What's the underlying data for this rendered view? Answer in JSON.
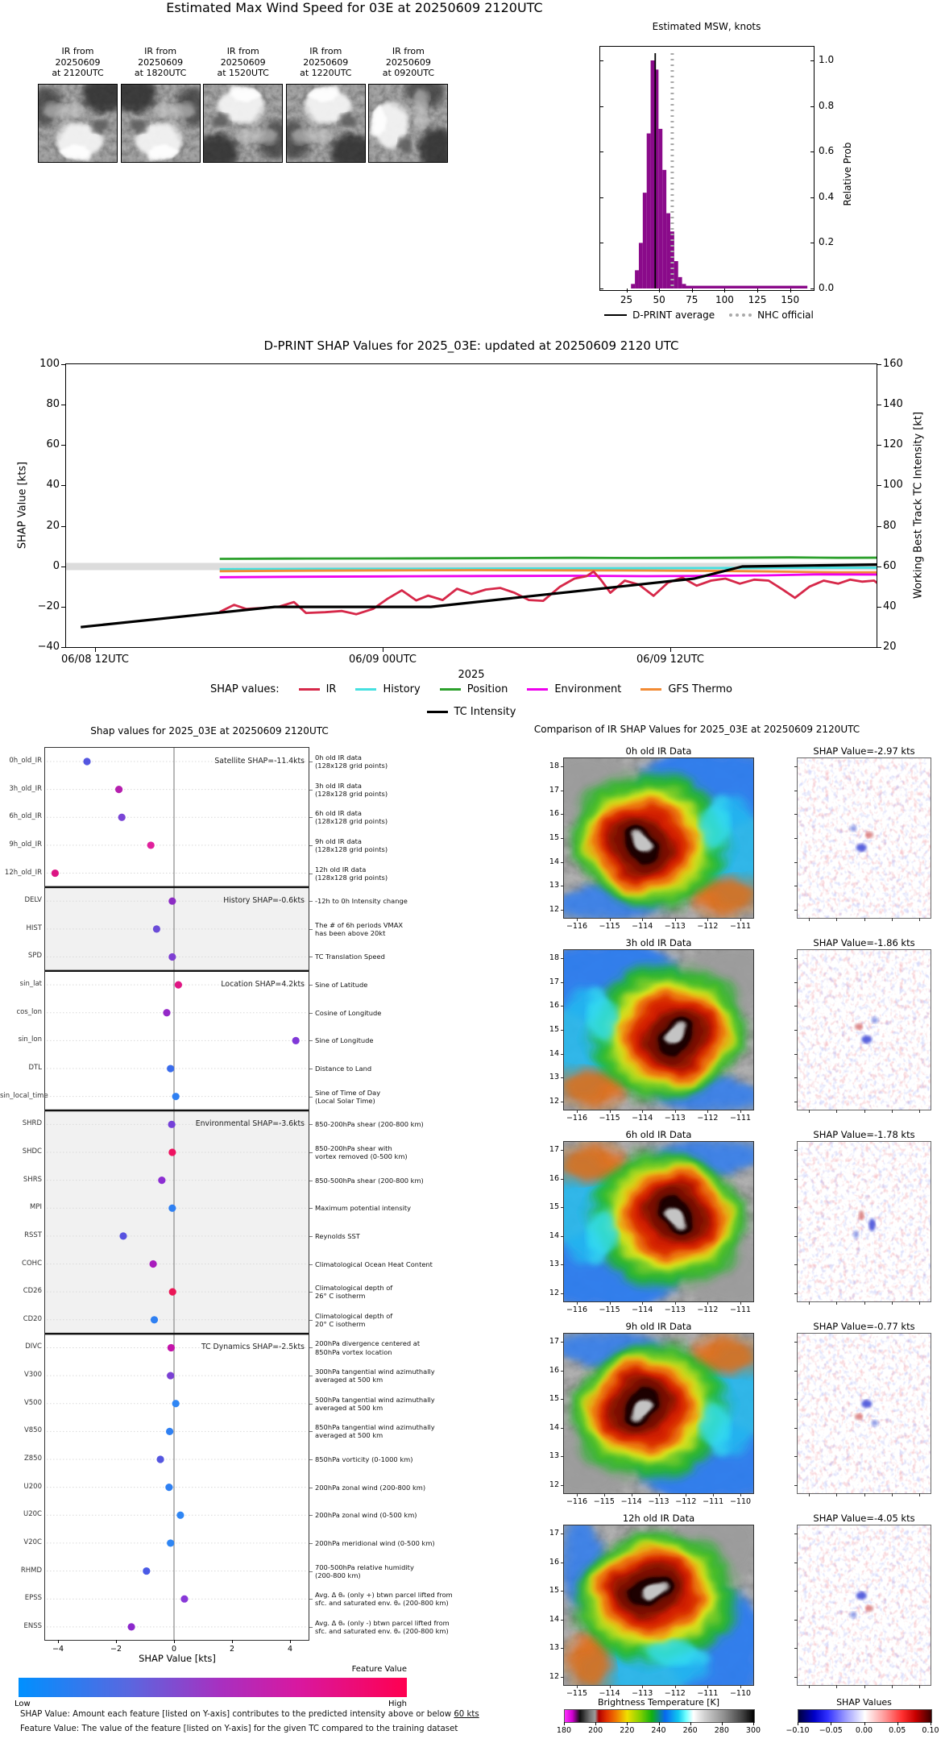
{
  "top": {
    "title": "Estimated Max Wind Speed for 03E at 20250609 2120UTC",
    "thumbs": [
      {
        "label": "IR from\n20250609\nat 2120UTC"
      },
      {
        "label": "IR from\n20250609\nat 1820UTC"
      },
      {
        "label": "IR from\n20250609\nat 1520UTC"
      },
      {
        "label": "IR from\n20250609\nat 1220UTC"
      },
      {
        "label": "IR from\n20250609\nat 0920UTC"
      }
    ]
  },
  "histogram": {
    "title": "Estimated MSW, knots",
    "ylabel": "Relative Prob",
    "yticks": [
      "1.0",
      "0.8",
      "0.6",
      "0.4",
      "0.2",
      "0.0"
    ],
    "xticks": [
      "25",
      "50",
      "75",
      "100",
      "125",
      "150"
    ],
    "legend": [
      {
        "label": "D-PRINT average",
        "style": "solid",
        "color": "#000000"
      },
      {
        "label": "NHC official",
        "style": "dotted",
        "color": "#a9a9a9"
      }
    ],
    "bar_color": "#8a0a8a"
  },
  "timeseries": {
    "title": "D-PRINT SHAP Values for 2025_03E: updated at 20250609 2120 UTC",
    "ylabel_left": "SHAP Value [kts]",
    "ylabel_right": "Working Best Track TC Intensity [kt]",
    "yticks_left": [
      "100",
      "80",
      "60",
      "40",
      "20",
      "0",
      "−20",
      "−40"
    ],
    "yticks_right": [
      "160",
      "140",
      "120",
      "100",
      "80",
      "60",
      "40",
      "20"
    ],
    "xticks": [
      "06/08 12UTC",
      "06/09 00UTC",
      "06/09 12UTC"
    ],
    "year_label": "2025",
    "legend_title": "SHAP values:",
    "legend_row1": [
      "IR",
      "History",
      "Position",
      "Environment",
      "GFS Thermo"
    ],
    "legend_row2": [
      "TC Intensity"
    ]
  },
  "feature_plot": {
    "title": "Shap values for 2025_03E at 20250609 2120UTC",
    "xlabel": "SHAP Value [kts]",
    "xticks": [
      "−4",
      "−2",
      "0",
      "2",
      "4"
    ],
    "sections": [
      {
        "label": "Satellite SHAP=-11.4kts",
        "shaded": false,
        "rows": [
          {
            "id": "0h_old_IR",
            "desc": "0h old IR data\n(128x128 grid points)"
          },
          {
            "id": "3h_old_IR",
            "desc": "3h old IR data\n(128x128 grid points)"
          },
          {
            "id": "6h_old_IR",
            "desc": "6h old IR data\n(128x128 grid points)"
          },
          {
            "id": "9h_old_IR",
            "desc": "9h old IR data\n(128x128 grid points)"
          },
          {
            "id": "12h_old_IR",
            "desc": "12h old IR data\n(128x128 grid points)"
          }
        ]
      },
      {
        "label": "History SHAP=-0.6kts",
        "shaded": true,
        "rows": [
          {
            "id": "DELV",
            "desc": "-12h to 0h Intensity change"
          },
          {
            "id": "HIST",
            "desc": "The # of 6h periods VMAX\nhas been above 20kt"
          },
          {
            "id": "SPD",
            "desc": "TC Translation Speed"
          }
        ]
      },
      {
        "label": "Location SHAP=4.2kts",
        "shaded": false,
        "rows": [
          {
            "id": "sin_lat",
            "desc": "Sine of Latitude"
          },
          {
            "id": "cos_lon",
            "desc": "Cosine of Longitude"
          },
          {
            "id": "sin_lon",
            "desc": "Sine of Longitude"
          },
          {
            "id": "DTL",
            "desc": "Distance to Land"
          },
          {
            "id": "sin_local_time",
            "desc": "Sine of Time of Day\n(Local Solar Time)"
          }
        ]
      },
      {
        "label": "Environmental SHAP=-3.6kts",
        "shaded": true,
        "rows": [
          {
            "id": "SHRD",
            "desc": "850-200hPa shear (200-800 km)"
          },
          {
            "id": "SHDC",
            "desc": "850-200hPa shear with\nvortex removed (0-500 km)"
          },
          {
            "id": "SHRS",
            "desc": "850-500hPa shear (200-800 km)"
          },
          {
            "id": "MPI",
            "desc": "Maximum potential intensity"
          },
          {
            "id": "RSST",
            "desc": "Reynolds SST"
          },
          {
            "id": "COHC",
            "desc": "Climatological Ocean Heat Content"
          },
          {
            "id": "CD26",
            "desc": "Climatological depth of\n26° C isotherm"
          },
          {
            "id": "CD20",
            "desc": "Climatological depth of\n20° C isotherm"
          }
        ]
      },
      {
        "label": "TC Dynamics SHAP=-2.5kts",
        "shaded": false,
        "rows": [
          {
            "id": "DIVC",
            "desc": "200hPa divergence centered at\n850hPa vortex location"
          },
          {
            "id": "V300",
            "desc": "300hPa tangential wind azimuthally\naveraged at 500 km"
          },
          {
            "id": "V500",
            "desc": "500hPa tangential wind azimuthally\naveraged at 500 km"
          },
          {
            "id": "V850",
            "desc": "850hPa tangential wind azimuthally\naveraged at 500 km"
          },
          {
            "id": "Z850",
            "desc": "850hPa vorticity (0-1000 km)"
          },
          {
            "id": "U200",
            "desc": "200hPa zonal wind (200-800 km)"
          },
          {
            "id": "U20C",
            "desc": "200hPa zonal wind (0-500 km)"
          },
          {
            "id": "V20C",
            "desc": "200hPa meridional wind (0-500 km)"
          },
          {
            "id": "RHMD",
            "desc": "700-500hPa relative humidity\n(200-800 km)"
          },
          {
            "id": "EPSS",
            "desc": "Avg. Δ θₑ (only +) btwn parcel lifted from\nsfc. and saturated env. θₑ (200-800 km)"
          },
          {
            "id": "ENSS",
            "desc": "Avg. Δ θₑ (only -) btwn parcel lifted from\nsfc. and saturated env. θₑ (200-800 km)"
          }
        ]
      }
    ],
    "colorbar": {
      "label": "Feature Value",
      "low": "Low",
      "high": "High"
    },
    "caption1_prefix": "SHAP Value: Amount each feature [listed on Y-axis] contributes to the predicted intensity above or below ",
    "caption1_underlined": "60 kts",
    "caption2": "Feature Value: The value of the feature [listed on Y-axis] for the given TC compared to the training dataset"
  },
  "ir_comparison": {
    "title": "Comparison of IR SHAP Values for 2025_03E at 20250609 2120UTC",
    "rows": [
      {
        "ir_title": "0h old IR Data",
        "shap_title": "SHAP Value=-2.97 kts",
        "lat_ticks": [
          "18",
          "17",
          "16",
          "15",
          "14",
          "13",
          "12"
        ],
        "lon_ticks": [
          "−116",
          "−115",
          "−114",
          "−113",
          "−112",
          "−111"
        ]
      },
      {
        "ir_title": "3h old IR Data",
        "shap_title": "SHAP Value=-1.86 kts",
        "lat_ticks": [
          "18",
          "17",
          "16",
          "15",
          "14",
          "13",
          "12"
        ],
        "lon_ticks": [
          "−116",
          "−115",
          "−114",
          "−113",
          "−112",
          "−111"
        ]
      },
      {
        "ir_title": "6h old IR Data",
        "shap_title": "SHAP Value=-1.78 kts",
        "lat_ticks": [
          "17",
          "16",
          "15",
          "14",
          "13",
          "12"
        ],
        "lon_ticks": [
          "−116",
          "−115",
          "−114",
          "−113",
          "−112",
          "−111"
        ]
      },
      {
        "ir_title": "9h old IR Data",
        "shap_title": "SHAP Value=-0.77 kts",
        "lat_ticks": [
          "17",
          "16",
          "15",
          "14",
          "13",
          "12"
        ],
        "lon_ticks": [
          "−116",
          "−115",
          "−114",
          "−113",
          "−112",
          "−111",
          "−110"
        ]
      },
      {
        "ir_title": "12h old IR Data",
        "shap_title": "SHAP Value=-4.05 kts",
        "lat_ticks": [
          "17",
          "16",
          "15",
          "14",
          "13",
          "12"
        ],
        "lon_ticks": [
          "−115",
          "−114",
          "−113",
          "−112",
          "−111",
          "−110"
        ]
      }
    ],
    "bt_colorbar": {
      "title": "Brightness Temperature [K]",
      "ticks": [
        "180",
        "200",
        "220",
        "240",
        "260",
        "280",
        "300"
      ]
    },
    "shap_colorbar": {
      "title": "SHAP Values",
      "ticks": [
        "−0.10",
        "−0.05",
        "0.00",
        "0.05",
        "0.10"
      ]
    }
  },
  "chart_data": [
    {
      "id": "msw_histogram",
      "type": "bar",
      "title": "Estimated MSW, knots",
      "ylabel": "Relative Prob",
      "x_kt": [
        30,
        33,
        36,
        39,
        42,
        45,
        48,
        51,
        54,
        57,
        60,
        63,
        66,
        69
      ],
      "rel_prob": [
        0.02,
        0.08,
        0.2,
        0.42,
        0.68,
        1.0,
        0.96,
        0.7,
        0.52,
        0.33,
        0.25,
        0.12,
        0.05,
        0.02
      ],
      "bar_width_kt": 3,
      "tail": {
        "from_kt": 70,
        "to_kt": 165,
        "prob": 0.012
      },
      "dprint_average_kt": 47,
      "nhc_official_kt": 60,
      "xlim": [
        5,
        168
      ],
      "ylim": [
        0,
        1.05
      ]
    },
    {
      "id": "shap_timeseries",
      "type": "line",
      "title": "D-PRINT SHAP Values for 2025_03E: updated at 20250609 2120 UTC",
      "x_unit": "hours since 06/08 12UTC",
      "tick_t": [
        0,
        12,
        24
      ],
      "ylim_left": [
        -40,
        100
      ],
      "ylim_right": [
        20,
        160
      ],
      "series": [
        {
          "name": "Position",
          "color": "#2ca02c",
          "axis": "left",
          "points": [
            [
              5.2,
              3.8
            ],
            [
              8,
              3.9
            ],
            [
              12,
              4.0
            ],
            [
              16,
              4.1
            ],
            [
              20,
              4.3
            ],
            [
              23,
              4.2
            ],
            [
              26,
              4.3
            ],
            [
              29,
              4.5
            ],
            [
              31,
              4.3
            ],
            [
              33,
              4.4
            ]
          ]
        },
        {
          "name": "History",
          "color": "#45e0e0",
          "axis": "left",
          "points": [
            [
              5.2,
              -1.3
            ],
            [
              8,
              -1.2
            ],
            [
              12,
              -1.1
            ],
            [
              16,
              -1.0
            ],
            [
              20,
              -0.9
            ],
            [
              24,
              -0.8
            ],
            [
              27,
              -0.7
            ],
            [
              30,
              -0.6
            ],
            [
              33,
              -0.6
            ]
          ]
        },
        {
          "name": "GFS Thermo",
          "color": "#f28a33",
          "axis": "left",
          "points": [
            [
              5.2,
              -2.3
            ],
            [
              8,
              -2.1
            ],
            [
              12,
              -1.9
            ],
            [
              16,
              -1.8
            ],
            [
              20,
              -1.9
            ],
            [
              23,
              -2.0
            ],
            [
              25,
              -2.1
            ],
            [
              27,
              -2.3
            ],
            [
              29,
              -2.6
            ],
            [
              31,
              -2.9
            ],
            [
              33,
              -2.9
            ]
          ]
        },
        {
          "name": "Environment",
          "color": "#ee00ee",
          "axis": "left",
          "points": [
            [
              5.2,
              -5.3
            ],
            [
              8,
              -5.1
            ],
            [
              12,
              -4.9
            ],
            [
              16,
              -4.7
            ],
            [
              20,
              -4.6
            ],
            [
              23,
              -4.8
            ],
            [
              26,
              -4.6
            ],
            [
              28,
              -4.4
            ],
            [
              30,
              -3.9
            ],
            [
              33,
              -4.0
            ]
          ]
        },
        {
          "name": "IR",
          "color": "#d62849",
          "axis": "left",
          "points": [
            [
              5.2,
              -22.5
            ],
            [
              5.8,
              -19
            ],
            [
              6.3,
              -21
            ],
            [
              7,
              -20.5
            ],
            [
              7.7,
              -19.8
            ],
            [
              8.3,
              -17.6
            ],
            [
              8.8,
              -23
            ],
            [
              9.6,
              -22.6
            ],
            [
              10.3,
              -22
            ],
            [
              10.9,
              -23.6
            ],
            [
              11.6,
              -21
            ],
            [
              12.2,
              -16
            ],
            [
              12.8,
              -11.8
            ],
            [
              13.4,
              -16.8
            ],
            [
              13.9,
              -14.4
            ],
            [
              14.5,
              -16.6
            ],
            [
              15.1,
              -11
            ],
            [
              15.7,
              -13.6
            ],
            [
              16.3,
              -11.4
            ],
            [
              16.9,
              -10.6
            ],
            [
              17.5,
              -13
            ],
            [
              18.1,
              -16.6
            ],
            [
              18.7,
              -17
            ],
            [
              19.4,
              -10
            ],
            [
              20,
              -6
            ],
            [
              20.5,
              -4.8
            ],
            [
              20.8,
              -2.5
            ],
            [
              21.1,
              -6.5
            ],
            [
              21.5,
              -13
            ],
            [
              22.1,
              -7
            ],
            [
              22.7,
              -9
            ],
            [
              23.3,
              -14.5
            ],
            [
              23.9,
              -8
            ],
            [
              24.5,
              -5.5
            ],
            [
              25.1,
              -9.5
            ],
            [
              25.7,
              -7
            ],
            [
              26.3,
              -6
            ],
            [
              26.9,
              -8.5
            ],
            [
              27.5,
              -6.5
            ],
            [
              28.1,
              -7
            ],
            [
              28.7,
              -11.5
            ],
            [
              29.2,
              -15.5
            ],
            [
              29.8,
              -10
            ],
            [
              30.4,
              -7
            ],
            [
              31,
              -8.5
            ],
            [
              31.5,
              -6.5
            ],
            [
              32,
              -7.5
            ],
            [
              32.5,
              -7
            ],
            [
              33,
              -11.5
            ]
          ]
        },
        {
          "name": "TC Intensity",
          "color": "#000000",
          "axis": "right",
          "points": [
            [
              -0.6,
              30
            ],
            [
              7.5,
              40
            ],
            [
              14,
              40
            ],
            [
              25,
              54
            ],
            [
              27,
              60
            ],
            [
              30,
              60.5
            ],
            [
              33,
              61
            ]
          ]
        }
      ]
    },
    {
      "id": "feature_shap",
      "type": "scatter",
      "xlabel": "SHAP Value [kts]",
      "xlim": [
        -4.45,
        4.65
      ],
      "features": [
        "0h_old_IR",
        "3h_old_IR",
        "6h_old_IR",
        "9h_old_IR",
        "12h_old_IR",
        "DELV",
        "HIST",
        "SPD",
        "sin_lat",
        "cos_lon",
        "sin_lon",
        "DTL",
        "sin_local_time",
        "SHRD",
        "SHDC",
        "SHRS",
        "MPI",
        "RSST",
        "COHC",
        "CD26",
        "CD20",
        "DIVC",
        "V300",
        "V500",
        "V850",
        "Z850",
        "U200",
        "U20C",
        "V20C",
        "RHMD",
        "EPSS",
        "ENSS"
      ],
      "values": [
        -3.0,
        -1.9,
        -1.8,
        -0.8,
        -4.1,
        -0.06,
        -0.6,
        -0.06,
        0.15,
        -0.25,
        4.2,
        -0.12,
        0.06,
        -0.08,
        -0.06,
        -0.42,
        -0.06,
        -1.75,
        -0.72,
        -0.05,
        -0.68,
        -0.1,
        -0.12,
        0.06,
        -0.15,
        -0.47,
        -0.17,
        0.22,
        -0.12,
        -0.95,
        0.36,
        -1.47
      ],
      "colors": [
        "#5456e0",
        "#b51fae",
        "#7a45d6",
        "#e0219c",
        "#dc1484",
        "#8c2cc4",
        "#6b4cd8",
        "#7d3ed2",
        "#e01684",
        "#9428c8",
        "#8038d8",
        "#3a6cec",
        "#2f80f2",
        "#7440d8",
        "#ee1260",
        "#8c2ed2",
        "#2f80f2",
        "#5852e0",
        "#a81cbc",
        "#ea1656",
        "#2f80f2",
        "#c414aa",
        "#7a40d4",
        "#2f86f4",
        "#2f80f2",
        "#5456e0",
        "#2f80f2",
        "#2f86f4",
        "#2f86f4",
        "#4a5ae6",
        "#8838d8",
        "#8c28cc"
      ],
      "group_totals": {
        "Satellite": -11.4,
        "History": -0.6,
        "Location": 4.2,
        "Environmental": -3.6,
        "TC Dynamics": -2.5
      }
    },
    {
      "id": "ir_shap_values",
      "type": "table",
      "age_hours": [
        0,
        3,
        6,
        9,
        12
      ],
      "shap_kts": [
        -2.97,
        -1.86,
        -1.78,
        -0.77,
        -4.05
      ]
    }
  ]
}
